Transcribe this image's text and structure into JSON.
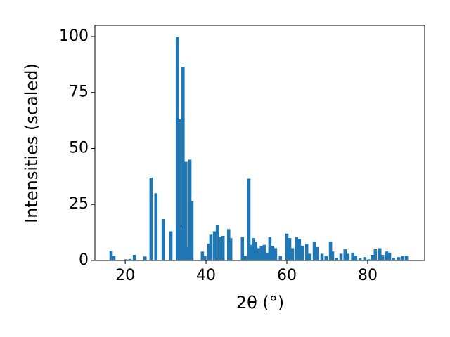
{
  "chart_data": {
    "type": "bar",
    "color": "#1f77b4",
    "x_label": "2θ (°)",
    "y_label": "Intensities (scaled)",
    "x": [
      16.5,
      17.2,
      20.2,
      21.2,
      22.3,
      24.9,
      26.4,
      27.6,
      29.4,
      31.3,
      32.9,
      33.4,
      33.9,
      34.3,
      35.0,
      35.5,
      36.0,
      36.5,
      39.1,
      39.7,
      40.7,
      41.2,
      42.1,
      42.8,
      43.7,
      44.2,
      45.6,
      46.1,
      49.0,
      49.7,
      50.6,
      51.1,
      51.7,
      52.3,
      53.0,
      53.7,
      54.4,
      55.1,
      55.8,
      56.5,
      57.2,
      58.4,
      60.0,
      60.7,
      61.4,
      62.4,
      63.1,
      63.8,
      64.9,
      65.7,
      66.8,
      67.5,
      68.7,
      69.7,
      70.8,
      71.3,
      72.3,
      73.4,
      74.4,
      75.1,
      76.3,
      77.0,
      78.1,
      79.3,
      80.3,
      81.2,
      81.9,
      83.0,
      83.7,
      84.7,
      85.4,
      86.4,
      87.7,
      88.7,
      89.6
    ],
    "values": [
      4.4,
      2,
      0.5,
      0.7,
      2.5,
      1.8,
      37,
      30,
      18.5,
      13,
      100,
      63,
      14,
      86.5,
      44,
      6,
      45,
      26.5,
      4,
      2,
      7.5,
      11.5,
      13,
      16,
      10.5,
      11,
      14,
      10,
      10.5,
      2,
      36.5,
      7,
      10,
      8.5,
      5.5,
      6.5,
      7,
      3.5,
      10.5,
      6.5,
      5.5,
      2,
      12,
      10,
      5.5,
      10.5,
      9.5,
      6.5,
      7.5,
      3,
      8.5,
      6,
      3,
      2,
      8.5,
      4,
      1,
      3,
      5,
      3,
      3.5,
      2,
      1,
      1.5,
      0.5,
      2.5,
      5,
      5.5,
      2.5,
      4,
      3.5,
      1,
      1.5,
      2,
      2
    ],
    "xlim": [
      12.5,
      94.1
    ],
    "ylim": [
      0,
      105
    ],
    "xticks": [
      20,
      40,
      60,
      80
    ],
    "yticks": [
      0,
      25,
      50,
      75,
      100
    ]
  }
}
